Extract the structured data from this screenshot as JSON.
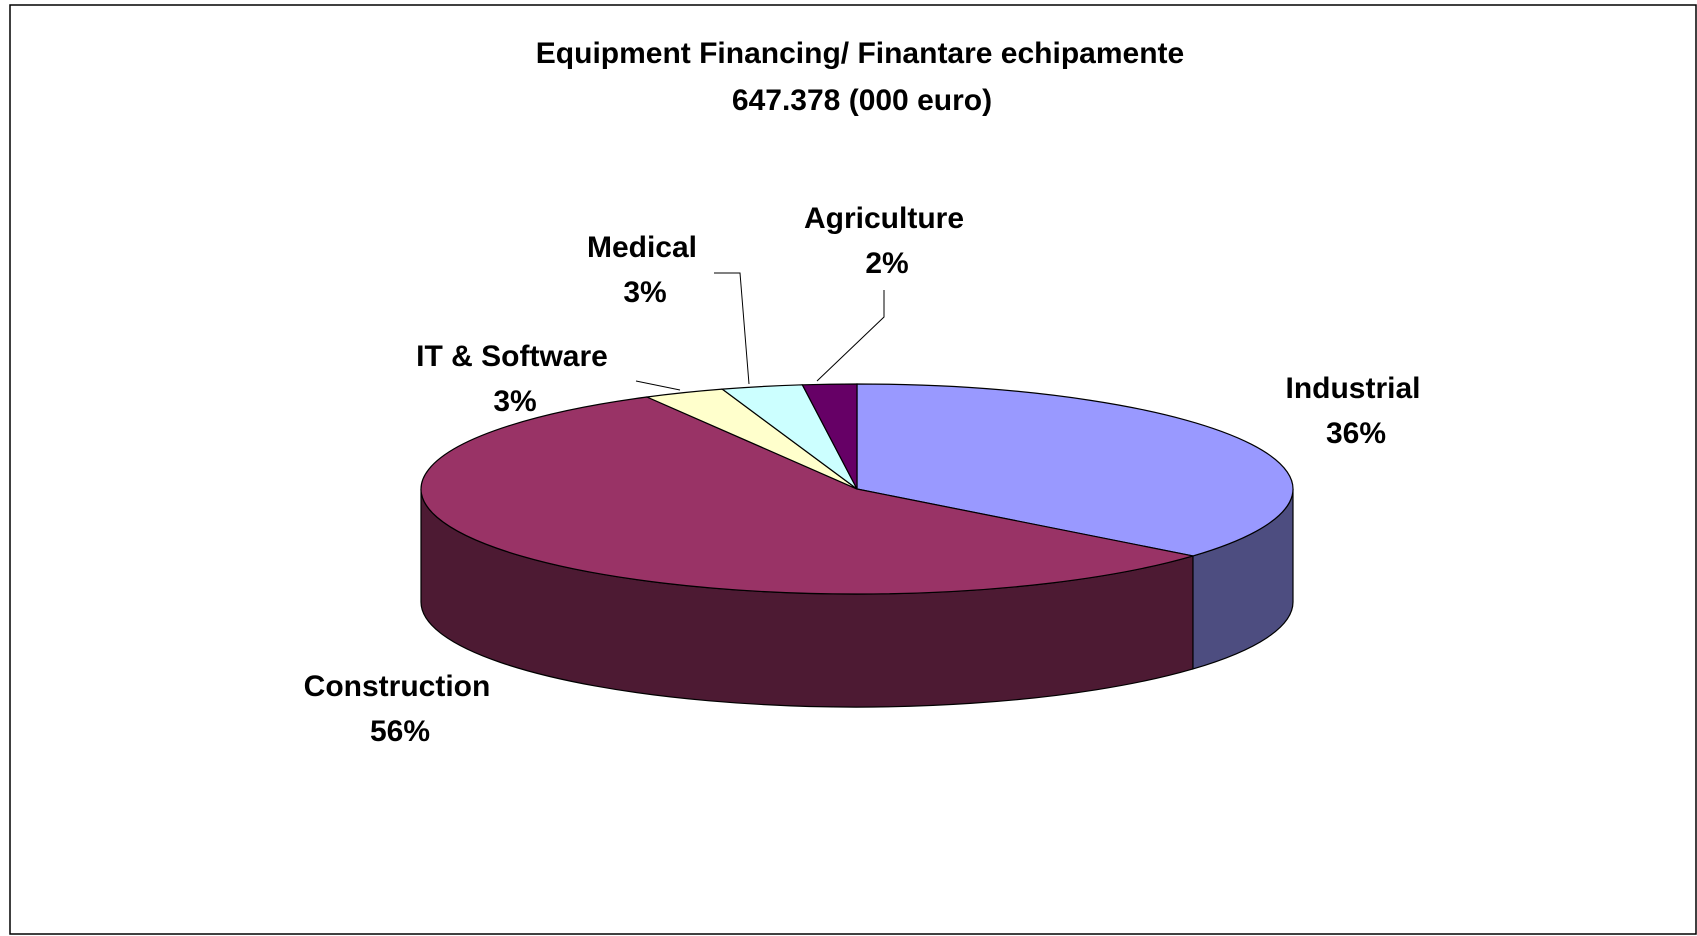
{
  "chart_data": {
    "type": "pie",
    "title": "Equipment Financing/ Finantare echipamente",
    "subtitle": "647.378 (000 euro)",
    "categories": [
      "Industrial",
      "Construction",
      "IT & Software",
      "Medical",
      "Agriculture"
    ],
    "values": [
      36,
      56,
      3,
      3,
      2
    ],
    "value_labels": [
      "36%",
      "56%",
      "3%",
      "3%",
      "2%"
    ],
    "colors": [
      "#9999ff",
      "#993366",
      "#ffffcc",
      "#ccffff",
      "#660066"
    ]
  }
}
